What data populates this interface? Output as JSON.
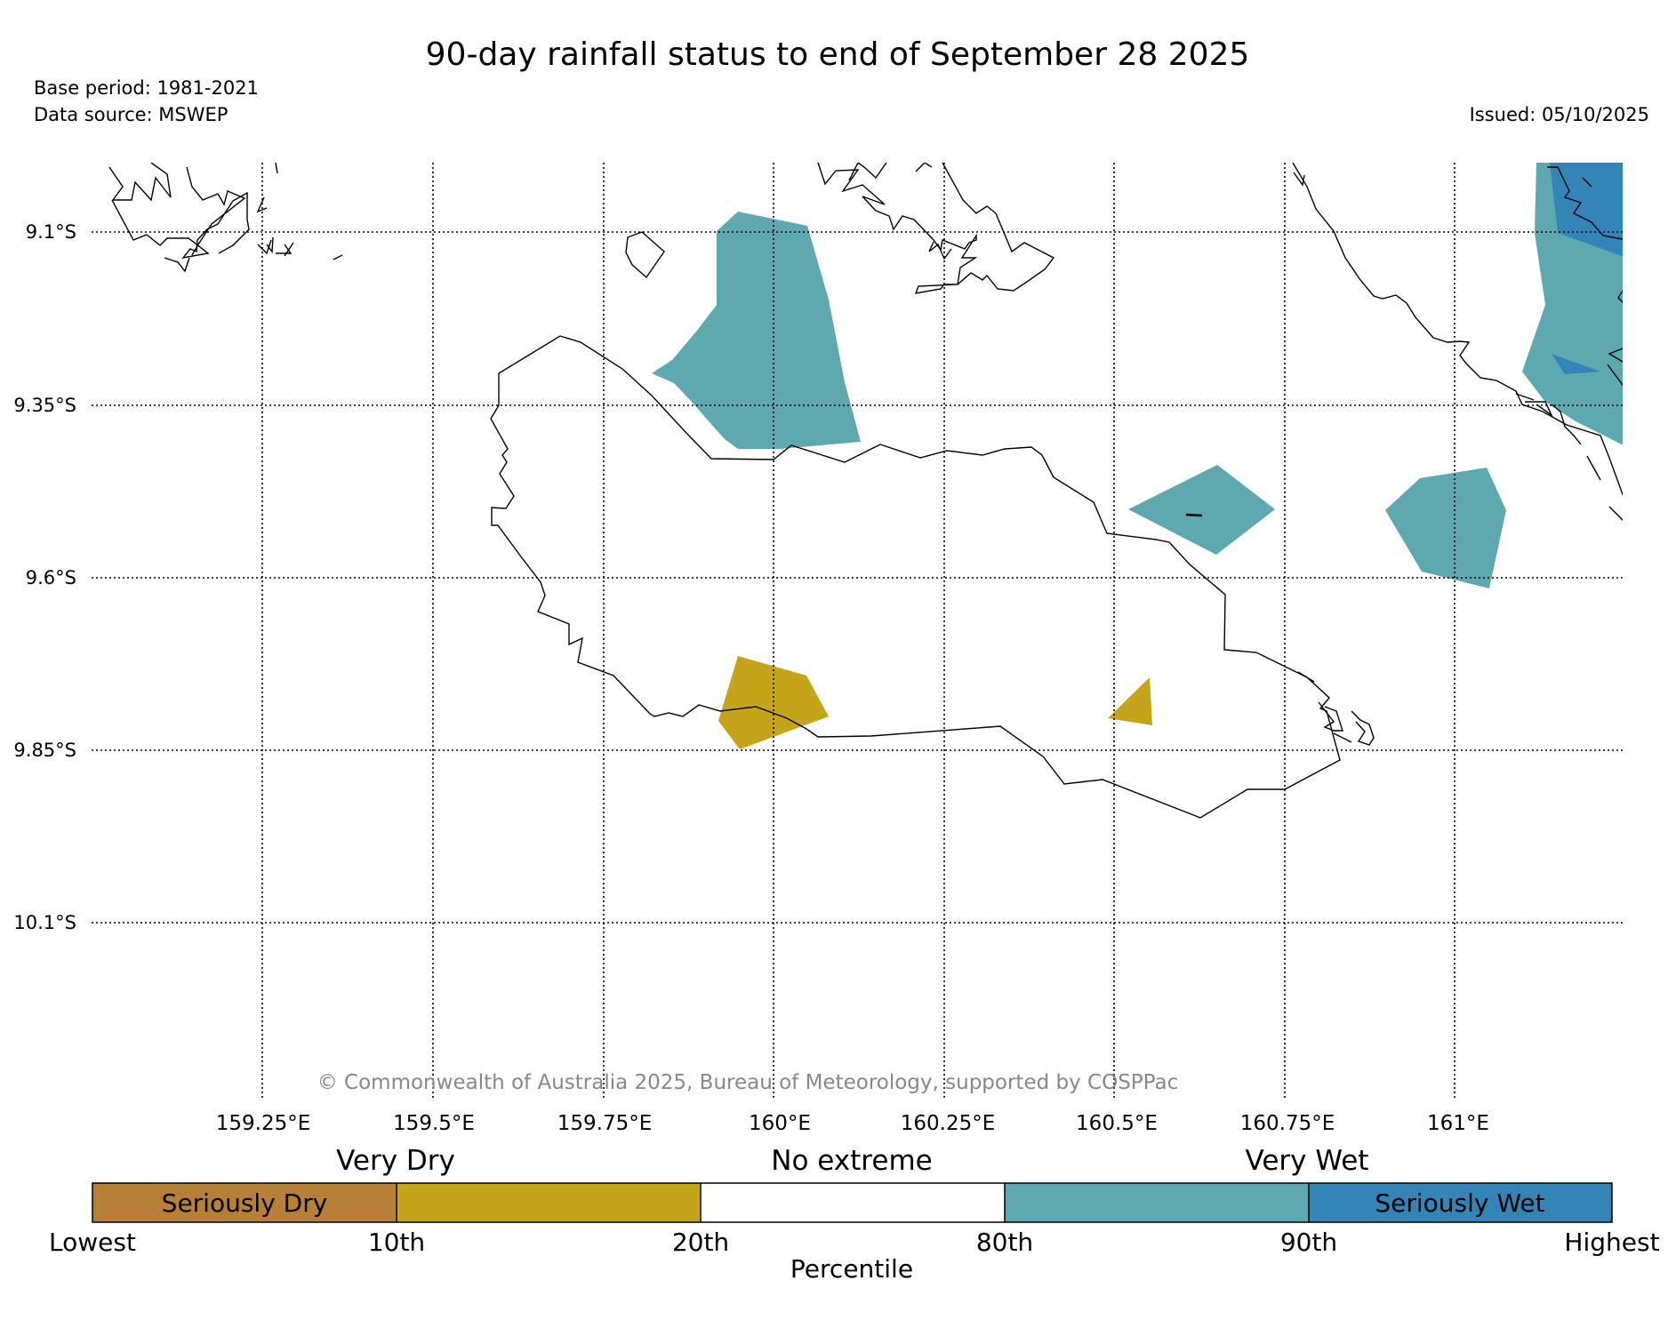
{
  "header": {
    "title": "90-day rainfall status to end of September 28 2025",
    "base_period": "Base period: 1981-2021",
    "data_source": "Data source: MSWEP",
    "issued": "Issued: 05/10/2025"
  },
  "map": {
    "lat_labels": [
      "9.1°S",
      "9.35°S",
      "9.6°S",
      "9.85°S",
      "10.1°S"
    ],
    "lon_labels": [
      "159.25°E",
      "159.5°E",
      "159.75°E",
      "160°E",
      "160.25°E",
      "160.5°E",
      "160.75°E",
      "161°E"
    ],
    "copyright": "© Commonwealth of Australia 2025, Bureau of Meteorology, supported by COSPPac"
  },
  "legend": {
    "group_labels": [
      "Very Dry",
      "No extreme",
      "Very Wet"
    ],
    "segments": [
      {
        "name": "seriously-dry",
        "label": "Seriously Dry",
        "color": "#b87f37"
      },
      {
        "name": "very-dry",
        "label": "",
        "color": "#c4a51a"
      },
      {
        "name": "no-extreme",
        "label": "",
        "color": "#ffffff"
      },
      {
        "name": "very-wet",
        "label": "",
        "color": "#5ea9b0"
      },
      {
        "name": "seriously-wet",
        "label": "Seriously Wet",
        "color": "#3384b7"
      }
    ],
    "ticks": [
      "Lowest",
      "10th",
      "20th",
      "80th",
      "90th",
      "Highest"
    ],
    "axis_title": "Percentile"
  }
}
